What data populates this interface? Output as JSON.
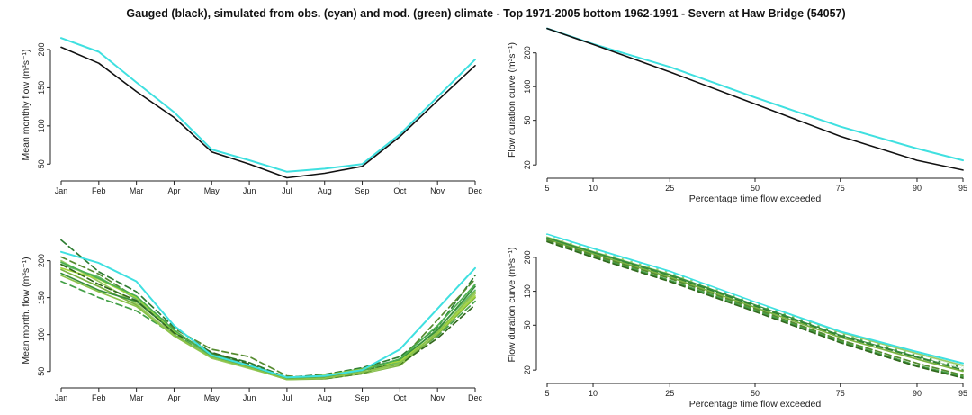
{
  "figure": {
    "title": "Gauged (black), simulated from obs. (cyan) and mod. (green) climate - Top 1971-2005 bottom 1962-1991 - Severn at Haw Bridge (54057)"
  },
  "colors": {
    "gauged": "#111111",
    "obs": "#3fe0e0",
    "green_shades": [
      "#2e7d32",
      "#43a047",
      "#66bb6a",
      "#7cb342",
      "#9ccc65",
      "#558b2f",
      "#388e3c",
      "#a5d63f",
      "#33691e",
      "#4caf50",
      "#8bc34a"
    ]
  },
  "chart_data": [
    {
      "id": "top-left",
      "type": "line",
      "title": "",
      "xlabel": "",
      "ylabel": "Mean monthly flow (m³s⁻¹)",
      "categories": [
        "Jan",
        "Feb",
        "Mar",
        "Apr",
        "May",
        "Jun",
        "Jul",
        "Aug",
        "Sep",
        "Oct",
        "Nov",
        "Dec"
      ],
      "ylim": [
        35,
        220
      ],
      "yticks": [
        50,
        100,
        150,
        200
      ],
      "series": [
        {
          "color_role": "obs",
          "style": "solid",
          "values": [
            215,
            197,
            157,
            118,
            69,
            55,
            40,
            44,
            50,
            89,
            138,
            187
          ]
        },
        {
          "color_role": "gauged",
          "style": "solid",
          "values": [
            203,
            182,
            145,
            111,
            66,
            50,
            32,
            38,
            47,
            86,
            133,
            179
          ]
        }
      ]
    },
    {
      "id": "top-right",
      "type": "line",
      "title": "",
      "xlabel": "Percentage time flow exceeded",
      "ylabel": "Flow duration curve (m³s⁻¹)",
      "log_y": true,
      "x_transform": "normal-probability",
      "x": [
        5,
        10,
        25,
        50,
        75,
        90,
        95
      ],
      "xticks": [
        5,
        10,
        25,
        50,
        75,
        90,
        95
      ],
      "ylim": [
        17,
        340
      ],
      "yticks": [
        20,
        50,
        100,
        200
      ],
      "series": [
        {
          "color_role": "obs",
          "style": "solid",
          "values": [
            330,
            240,
            150,
            80,
            44,
            28,
            22
          ]
        },
        {
          "color_role": "gauged",
          "style": "solid",
          "values": [
            330,
            238,
            135,
            70,
            36,
            22,
            18
          ]
        }
      ]
    },
    {
      "id": "bottom-left",
      "type": "line",
      "title": "",
      "xlabel": "",
      "ylabel": "Mean month. flow (m³s⁻¹)",
      "categories": [
        "Jan",
        "Feb",
        "Mar",
        "Apr",
        "May",
        "Jun",
        "Jul",
        "Aug",
        "Sep",
        "Oct",
        "Nov",
        "Dec"
      ],
      "ylim": [
        35,
        230
      ],
      "yticks": [
        50,
        100,
        150,
        200
      ],
      "series": [
        {
          "color_role": "green",
          "shade": 0,
          "style": "dashed",
          "values": [
            228,
            185,
            158,
            110,
            75,
            62,
            42,
            46,
            55,
            70,
            110,
            180
          ]
        },
        {
          "color_role": "green",
          "shade": 1,
          "style": "dashed",
          "values": [
            172,
            150,
            132,
            100,
            72,
            58,
            40,
            43,
            52,
            62,
            98,
            145
          ]
        },
        {
          "color_role": "green",
          "shade": 2,
          "style": "solid",
          "values": [
            195,
            178,
            148,
            104,
            70,
            56,
            40,
            42,
            48,
            63,
            108,
            160
          ]
        },
        {
          "color_role": "green",
          "shade": 3,
          "style": "solid",
          "values": [
            188,
            165,
            140,
            100,
            68,
            55,
            39,
            40,
            47,
            58,
            100,
            150
          ]
        },
        {
          "color_role": "green",
          "shade": 4,
          "style": "solid",
          "values": [
            200,
            172,
            142,
            98,
            68,
            54,
            40,
            41,
            47,
            60,
            104,
            155
          ]
        },
        {
          "color_role": "green",
          "shade": 5,
          "style": "dashed",
          "values": [
            205,
            182,
            150,
            108,
            80,
            70,
            44,
            40,
            47,
            65,
            120,
            175
          ]
        },
        {
          "color_role": "green",
          "shade": 6,
          "style": "solid",
          "values": [
            183,
            160,
            145,
            103,
            74,
            58,
            42,
            44,
            54,
            66,
            106,
            165
          ]
        },
        {
          "color_role": "green",
          "shade": 7,
          "style": "solid",
          "values": [
            190,
            175,
            150,
            105,
            72,
            57,
            40,
            45,
            53,
            64,
            102,
            152
          ]
        },
        {
          "color_role": "green",
          "shade": 8,
          "style": "dashed",
          "values": [
            195,
            168,
            146,
            102,
            76,
            60,
            41,
            42,
            52,
            60,
            95,
            140
          ]
        },
        {
          "color_role": "green",
          "shade": 9,
          "style": "solid",
          "values": [
            198,
            176,
            152,
            106,
            71,
            57,
            41,
            43,
            51,
            67,
            112,
            168
          ]
        },
        {
          "color_role": "green",
          "shade": 10,
          "style": "solid",
          "values": [
            180,
            158,
            138,
            98,
            69,
            55,
            39,
            41,
            49,
            61,
            103,
            158
          ]
        },
        {
          "color_role": "obs",
          "style": "solid",
          "values": [
            212,
            197,
            172,
            112,
            72,
            58,
            42,
            44,
            52,
            80,
            135,
            190
          ]
        }
      ]
    },
    {
      "id": "bottom-right",
      "type": "line",
      "title": "",
      "xlabel": "Percentage time flow exceeded",
      "ylabel": "Flow duration curve (m³s⁻¹)",
      "log_y": true,
      "x_transform": "normal-probability",
      "x": [
        5,
        10,
        25,
        50,
        75,
        90,
        95
      ],
      "xticks": [
        5,
        10,
        25,
        50,
        75,
        90,
        95
      ],
      "ylim": [
        17,
        340
      ],
      "yticks": [
        20,
        50,
        100,
        200
      ],
      "series": [
        {
          "color_role": "green",
          "shade": 0,
          "style": "dashed",
          "values": [
            295,
            220,
            138,
            74,
            40,
            26,
            20
          ]
        },
        {
          "color_role": "green",
          "shade": 1,
          "style": "dashed",
          "values": [
            280,
            205,
            125,
            68,
            36,
            22,
            17.5
          ]
        },
        {
          "color_role": "green",
          "shade": 2,
          "style": "solid",
          "values": [
            300,
            225,
            142,
            77,
            42,
            27,
            21
          ]
        },
        {
          "color_role": "green",
          "shade": 3,
          "style": "solid",
          "values": [
            290,
            215,
            134,
            72,
            39,
            25,
            19.5
          ]
        },
        {
          "color_role": "green",
          "shade": 4,
          "style": "solid",
          "values": [
            305,
            230,
            145,
            79,
            43,
            28,
            22
          ]
        },
        {
          "color_role": "green",
          "shade": 5,
          "style": "dashed",
          "values": [
            285,
            210,
            130,
            70,
            37,
            23,
            18
          ]
        },
        {
          "color_role": "green",
          "shade": 6,
          "style": "solid",
          "values": [
            298,
            222,
            140,
            76,
            41,
            26.5,
            21
          ]
        },
        {
          "color_role": "green",
          "shade": 8,
          "style": "dashed",
          "values": [
            275,
            200,
            122,
            66,
            35,
            21.5,
            17
          ]
        },
        {
          "color_role": "obs",
          "style": "solid",
          "values": [
            320,
            240,
            150,
            80,
            44,
            29,
            23
          ]
        },
        {
          "color_role": "white",
          "style": "dashed",
          "values": [
            312,
            232,
            146,
            78,
            42,
            27,
            21
          ]
        }
      ]
    }
  ]
}
